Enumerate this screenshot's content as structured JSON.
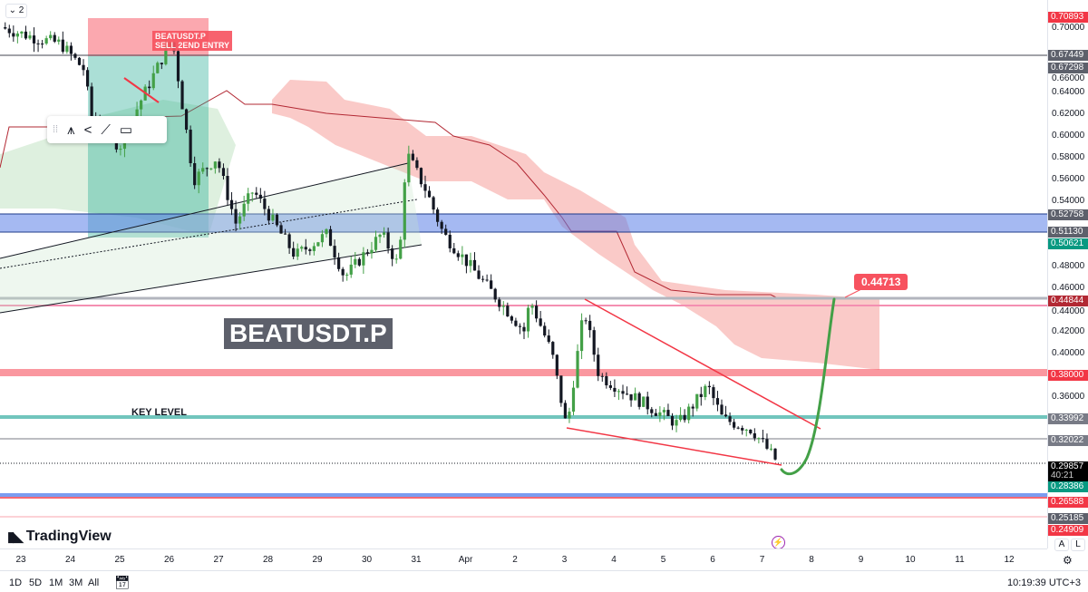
{
  "symbol_label": "BEATUSDT.P",
  "position_label": [
    "BEATUSDT.P",
    "SELL 2END ENTRY"
  ],
  "key_level_label": "KEY LEVEL",
  "target_label": "0.44713",
  "collapse_badge": "2",
  "brand": "TradingView",
  "axis_ticks": [
    "0.70000",
    "0.66000",
    "0.64000",
    "0.62000",
    "0.60000",
    "0.58000",
    "0.56000",
    "0.54000",
    "0.48000",
    "0.46000",
    "0.44000",
    "0.42000",
    "0.40000",
    "0.36000"
  ],
  "price_labels": [
    {
      "price": 0.70893,
      "text": "0.70893",
      "color": "#f23645"
    },
    {
      "price": 0.67449,
      "text": "0.67449",
      "color": "#5d606b"
    },
    {
      "price": 0.67298,
      "text": "0.67298",
      "color": "#5d606b",
      "offset": 13
    },
    {
      "price": 0.52758,
      "text": "0.52758",
      "color": "#5d606b"
    },
    {
      "price": 0.5113,
      "text": "0.51130",
      "color": "#5d606b"
    },
    {
      "price": 0.50621,
      "text": "0.50621",
      "color": "#089981",
      "offset": 6
    },
    {
      "price": 0.44844,
      "text": "0.44844",
      "color": "#b22833"
    },
    {
      "price": 0.38,
      "text": "0.38000",
      "color": "#f23645"
    },
    {
      "price": 0.33992,
      "text": "0.33992",
      "color": "#787b86"
    },
    {
      "price": 0.32022,
      "text": "0.32022",
      "color": "#787b86"
    },
    {
      "price": 0.28386,
      "text": "0.28386",
      "color": "#089981",
      "offset": 8
    },
    {
      "price": 0.26588,
      "text": "0.26588",
      "color": "#f23645",
      "offset": 3
    },
    {
      "price": 0.25185,
      "text": "0.25185",
      "color": "#5d606b",
      "offset": 4
    },
    {
      "price": 0.24909,
      "text": "0.24909",
      "color": "#f23645",
      "offset": 14
    }
  ],
  "last_price": {
    "price": 0.29857,
    "text": "0.29857",
    "countdown": "40:21"
  },
  "time_labels": [
    {
      "day": 0,
      "t": "23"
    },
    {
      "day": 1,
      "t": "24"
    },
    {
      "day": 2,
      "t": "25"
    },
    {
      "day": 3,
      "t": "26"
    },
    {
      "day": 4,
      "t": "27"
    },
    {
      "day": 5,
      "t": "28"
    },
    {
      "day": 6,
      "t": "29"
    },
    {
      "day": 7,
      "t": "30"
    },
    {
      "day": 8,
      "t": "31"
    },
    {
      "day": 9,
      "t": "Apr"
    },
    {
      "day": 10,
      "t": "2"
    },
    {
      "day": 11,
      "t": "3"
    },
    {
      "day": 12,
      "t": "4"
    },
    {
      "day": 13,
      "t": "5"
    },
    {
      "day": 14,
      "t": "6"
    },
    {
      "day": 15,
      "t": "7"
    },
    {
      "day": 16,
      "t": "8"
    },
    {
      "day": 17,
      "t": "9"
    },
    {
      "day": 18,
      "t": "10"
    },
    {
      "day": 19,
      "t": "11"
    },
    {
      "day": 20,
      "t": "12"
    }
  ],
  "bottom_bar": {
    "ranges": [
      "1D",
      "5D",
      "1M",
      "3M",
      "All"
    ],
    "clock": "10:19:39 UTC+3"
  },
  "axis_buttons": [
    "A",
    "L"
  ],
  "colors": {
    "up": "#089981",
    "down": "#131722",
    "up_candle": "#43a047"
  },
  "chart_data": {
    "type": "candlestick",
    "path": [
      [
        -0.4,
        0.7
      ],
      [
        0.3,
        0.69
      ],
      [
        0.8,
        0.685
      ],
      [
        1.3,
        0.66
      ],
      [
        1.4,
        0.62
      ],
      [
        2.0,
        0.59
      ],
      [
        2.4,
        0.63
      ],
      [
        3.06,
        0.69
      ],
      [
        3.5,
        0.56
      ],
      [
        3.96,
        0.58
      ],
      [
        4.35,
        0.52
      ],
      [
        4.7,
        0.55
      ],
      [
        5.55,
        0.49
      ],
      [
        6.2,
        0.51
      ],
      [
        6.55,
        0.47
      ],
      [
        7.3,
        0.51
      ],
      [
        7.65,
        0.48
      ],
      [
        7.8,
        0.585
      ],
      [
        8.2,
        0.55
      ],
      [
        8.55,
        0.51
      ],
      [
        9.1,
        0.48
      ],
      [
        10.2,
        0.42
      ],
      [
        10.3,
        0.45
      ],
      [
        10.75,
        0.4
      ],
      [
        11.05,
        0.33
      ],
      [
        11.2,
        0.38
      ],
      [
        11.4,
        0.44
      ],
      [
        11.7,
        0.38
      ],
      [
        12.4,
        0.36
      ],
      [
        13.3,
        0.335
      ],
      [
        13.9,
        0.37
      ],
      [
        14.2,
        0.34
      ],
      [
        14.8,
        0.33
      ],
      [
        15.35,
        0.298
      ]
    ]
  }
}
